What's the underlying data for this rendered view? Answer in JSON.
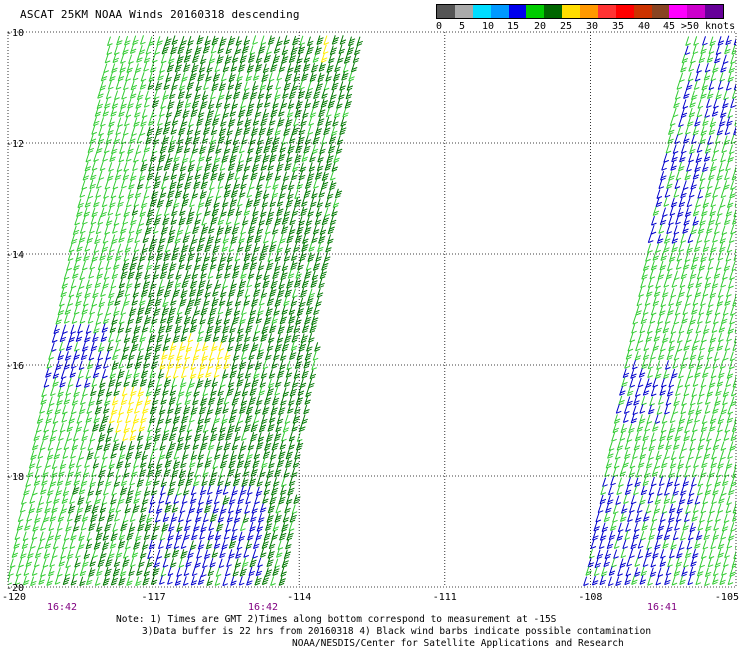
{
  "title": "ASCAT 25KM NOAA Winds 20160318 descending",
  "scale": {
    "colors": [
      "#555555",
      "#aaaaaa",
      "#00ddff",
      "#0099ff",
      "#0000ee",
      "#00cc00",
      "#006600",
      "#ffdd00",
      "#ff9900",
      "#ff3333",
      "#ff0000",
      "#cc3300",
      "#884422",
      "#ff00ff",
      "#cc00cc",
      "#660099"
    ],
    "labels": [
      "0",
      "5",
      "10",
      "15",
      "20",
      "25",
      "30",
      "35",
      "40",
      "45",
      ">50 knots"
    ]
  },
  "lat_labels": [
    "-10",
    "-12",
    "-14",
    "-16",
    "-18",
    "-20"
  ],
  "lon_labels": [
    "-120",
    "-117",
    "-114",
    "-111",
    "-108",
    "-105"
  ],
  "time_labels": [
    "16:42",
    "16:42",
    "16:41"
  ],
  "notes": {
    "line1": "Note: 1) Times are GMT 2)Times along bottom correspond to measurement at -15S",
    "line2": "3)Data buffer is 22 hrs from 20160318 4) Black wind barbs indicate possible contamination",
    "line3": "NOAA/NESDIS/Center for Satellite Applications and Research"
  },
  "map": {
    "lat_range": [
      -20,
      -10
    ],
    "lon_range": [
      -120,
      -105
    ],
    "grid": "dotted",
    "swaths": [
      {
        "name": "western pass",
        "time": "16:42"
      },
      {
        "name": "eastern pass",
        "time": "16:41"
      }
    ],
    "barb_colors": {
      "blue": "#0000cc",
      "light_green": "#33cc33",
      "dark_green": "#007700",
      "yellow": "#ffee00"
    }
  }
}
